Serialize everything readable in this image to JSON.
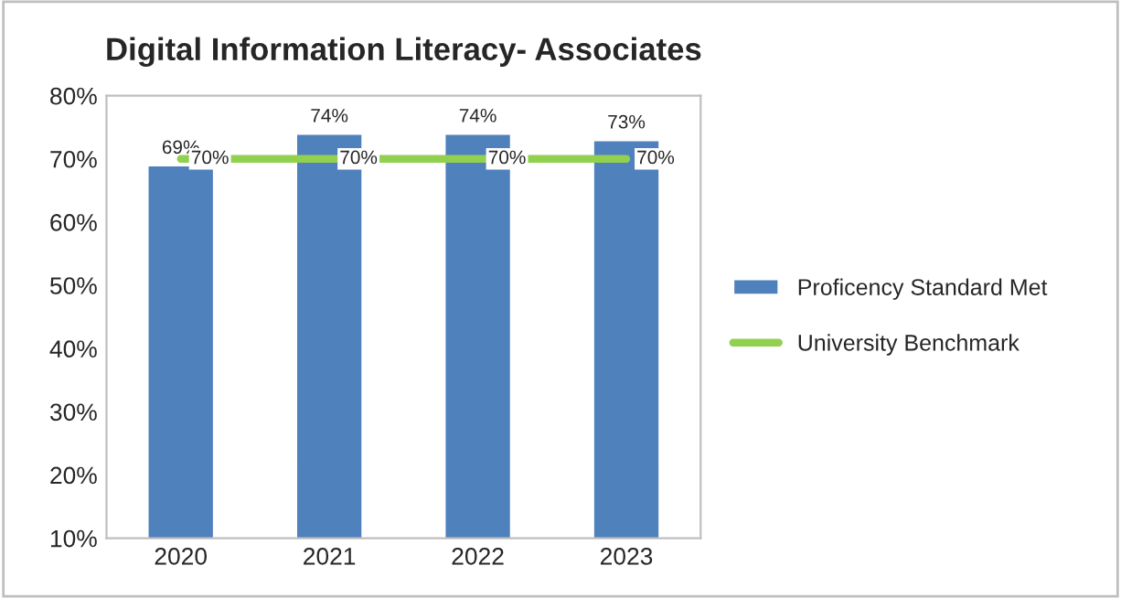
{
  "chart_data": {
    "type": "bar",
    "title": "Digital Information Literacy- Associates",
    "categories": [
      "2020",
      "2021",
      "2022",
      "2023"
    ],
    "series": [
      {
        "name": "Proficency Standard Met",
        "color": "#4f81bd",
        "values": [
          69,
          74,
          74,
          73
        ],
        "value_labels": [
          "69%",
          "74%",
          "74%",
          "73%"
        ]
      },
      {
        "name": "University Benchmark",
        "type": "line",
        "color": "#92d050",
        "values": [
          70,
          70,
          70,
          70
        ],
        "value_labels": [
          "70%",
          "70%",
          "70%",
          "70%"
        ]
      }
    ],
    "ylim": [
      10,
      80
    ],
    "yticks": [
      {
        "value": 10,
        "label": "10%"
      },
      {
        "value": 20,
        "label": "20%"
      },
      {
        "value": 30,
        "label": "30%"
      },
      {
        "value": 40,
        "label": "40%"
      },
      {
        "value": 50,
        "label": "50%"
      },
      {
        "value": 60,
        "label": "60%"
      },
      {
        "value": 70,
        "label": "70%"
      },
      {
        "value": 80,
        "label": "80%"
      }
    ],
    "grid": false,
    "legend": "right"
  }
}
